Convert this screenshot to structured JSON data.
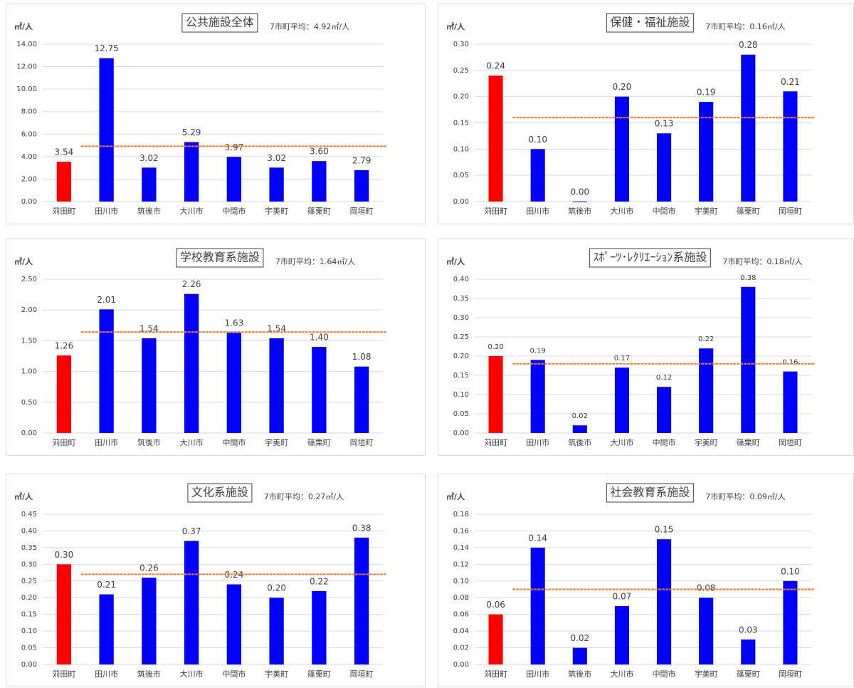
{
  "chart_data": [
    {
      "type": "bar",
      "title": "公共施設全体",
      "annotation": "7市町平均：4.92㎡/人",
      "y_label": "㎡/人",
      "categories": [
        "苅田町",
        "田川市",
        "筑後市",
        "大川市",
        "中間市",
        "宇美町",
        "篠栗町",
        "岡垣町"
      ],
      "values": [
        3.54,
        12.75,
        3.02,
        5.29,
        3.97,
        3.02,
        3.6,
        2.79
      ],
      "value_labels": [
        "3.54",
        "12.75",
        "3.02",
        "5.29",
        "3.97",
        "3.02",
        "3.60",
        "2.79"
      ],
      "colors": [
        "#ff0000",
        "#0000ff",
        "#0000ff",
        "#0000ff",
        "#0000ff",
        "#0000ff",
        "#0000ff",
        "#0000ff"
      ],
      "average": 4.92,
      "average_color": "#ed7d31",
      "ylim": [
        0,
        14
      ],
      "yticks": [
        {
          "value": 0,
          "label": "0.00"
        },
        {
          "value": 2,
          "label": "2.00"
        },
        {
          "value": 4,
          "label": "4.00"
        },
        {
          "value": 6,
          "label": "6.00"
        },
        {
          "value": 8,
          "label": "8.00"
        },
        {
          "value": 10,
          "label": "10.00"
        },
        {
          "value": 12,
          "label": "12.00"
        },
        {
          "value": 14,
          "label": "14.00"
        }
      ],
      "grid": true
    },
    {
      "type": "bar",
      "title": "保健・福祉施設",
      "annotation": "7市町平均：0.16㎡/人",
      "y_label": "㎡/人",
      "categories": [
        "苅田町",
        "田川市",
        "筑後市",
        "大川市",
        "中間市",
        "宇美町",
        "篠栗町",
        "岡垣町"
      ],
      "values": [
        0.24,
        0.1,
        0.0,
        0.2,
        0.13,
        0.19,
        0.28,
        0.21
      ],
      "value_labels": [
        "0.24",
        "0.10",
        "0.00",
        "0.20",
        "0.13",
        "0.19",
        "0.28",
        "0.21"
      ],
      "colors": [
        "#ff0000",
        "#0000ff",
        "#0000ff",
        "#0000ff",
        "#0000ff",
        "#0000ff",
        "#0000ff",
        "#0000ff"
      ],
      "average": 0.16,
      "average_color": "#ed7d31",
      "ylim": [
        0,
        0.3
      ],
      "yticks": [
        {
          "value": 0,
          "label": "0.00"
        },
        0.05,
        {
          "value": 0.1,
          "label": "0.10"
        },
        0.15,
        {
          "value": 0.2,
          "label": "0.20"
        },
        0.25,
        {
          "value": 0.3,
          "label": "0.30"
        }
      ],
      "grid": true
    },
    {
      "type": "bar",
      "title": "学校教育系施設",
      "annotation": "7市町平均：1.64㎡/人",
      "y_label": "㎡/人",
      "categories": [
        "苅田町",
        "田川市",
        "筑後市",
        "大川市",
        "中間市",
        "宇美町",
        "篠栗町",
        "岡垣町"
      ],
      "values": [
        1.26,
        2.01,
        1.54,
        2.26,
        1.63,
        1.54,
        1.4,
        1.08
      ],
      "value_labels": [
        "1.26",
        "2.01",
        "1.54",
        "2.26",
        "1.63",
        "1.54",
        "1.40",
        "1.08"
      ],
      "colors": [
        "#ff0000",
        "#0000ff",
        "#0000ff",
        "#0000ff",
        "#0000ff",
        "#0000ff",
        "#0000ff",
        "#0000ff"
      ],
      "average": 1.64,
      "average_color": "#ed7d31",
      "ylim": [
        0,
        2.5
      ],
      "yticks": [
        {
          "value": 0,
          "label": "0.00"
        },
        {
          "value": 0.5,
          "label": "0.50"
        },
        {
          "value": 1,
          "label": "1.00"
        },
        {
          "value": 1.5,
          "label": "1.50"
        },
        {
          "value": 2,
          "label": "2.00"
        },
        {
          "value": 2.5,
          "label": "2.50"
        }
      ],
      "grid": true
    },
    {
      "type": "bar",
      "title": "ｽﾎﾟｰﾂ･ﾚｸﾘｴｰｼｮﾝ系施設",
      "annotation": "7市町平均：0.18㎡/人",
      "y_label": "㎡/人",
      "categories": [
        "苅田町",
        "田川市",
        "筑後市",
        "大川市",
        "中間市",
        "宇美町",
        "篠栗町",
        "岡垣町"
      ],
      "values": [
        0.2,
        0.19,
        0.02,
        0.17,
        0.12,
        0.22,
        0.38,
        0.16
      ],
      "value_labels": [
        "0.20",
        "0.19",
        "0.02",
        "0.17",
        "0.12",
        "0.22",
        "0.38",
        "0.16"
      ],
      "colors": [
        "#ff0000",
        "#0000ff",
        "#0000ff",
        "#0000ff",
        "#0000ff",
        "#0000ff",
        "#0000ff",
        "#0000ff"
      ],
      "average": 0.18,
      "average_color": "#ed7d31",
      "ylim": [
        0,
        0.4
      ],
      "yticks": [
        {
          "value": 0,
          "label": "0.00"
        },
        0.05,
        {
          "value": 0.1,
          "label": "0.10"
        },
        0.15,
        {
          "value": 0.2,
          "label": "0.20"
        },
        0.25,
        {
          "value": 0.3,
          "label": "0.30"
        },
        0.35,
        {
          "value": 0.4,
          "label": "0.40"
        }
      ],
      "grid": true
    },
    {
      "type": "bar",
      "title": "文化系施設",
      "annotation": "7市町平均：0.27㎡/人",
      "y_label": "㎡/人",
      "categories": [
        "苅田町",
        "田川市",
        "筑後市",
        "大川市",
        "中間市",
        "宇美町",
        "篠栗町",
        "岡垣町"
      ],
      "values": [
        0.3,
        0.21,
        0.26,
        0.37,
        0.24,
        0.2,
        0.22,
        0.38
      ],
      "value_labels": [
        "0.30",
        "0.21",
        "0.26",
        "0.37",
        "0.24",
        "0.20",
        "0.22",
        "0.38"
      ],
      "colors": [
        "#ff0000",
        "#0000ff",
        "#0000ff",
        "#0000ff",
        "#0000ff",
        "#0000ff",
        "#0000ff",
        "#0000ff"
      ],
      "average": 0.27,
      "average_color": "#ed7d31",
      "ylim": [
        0,
        0.45
      ],
      "yticks": [
        {
          "value": 0,
          "label": "0.00"
        },
        0.05,
        {
          "value": 0.1,
          "label": "0.10"
        },
        0.15,
        {
          "value": 0.2,
          "label": "0.20"
        },
        0.25,
        {
          "value": 0.3,
          "label": "0.30"
        },
        0.35,
        {
          "value": 0.4,
          "label": "0.40"
        },
        0.45
      ],
      "grid": true
    },
    {
      "type": "bar",
      "title": "社会教育系施設",
      "annotation": "7市町平均：0.09㎡/人",
      "y_label": "㎡/人",
      "categories": [
        "苅田町",
        "田川市",
        "筑後市",
        "大川市",
        "中間市",
        "宇美町",
        "篠栗町",
        "岡垣町"
      ],
      "values": [
        0.06,
        0.14,
        0.02,
        0.07,
        0.15,
        0.08,
        0.03,
        0.1
      ],
      "value_labels": [
        "0.06",
        "0.14",
        "0.02",
        "0.07",
        "0.15",
        "0.08",
        "0.03",
        "0.10"
      ],
      "colors": [
        "#ff0000",
        "#0000ff",
        "#0000ff",
        "#0000ff",
        "#0000ff",
        "#0000ff",
        "#0000ff",
        "#0000ff"
      ],
      "average": 0.09,
      "average_color": "#ed7d31",
      "ylim": [
        0,
        0.18
      ],
      "yticks": [
        {
          "value": 0,
          "label": "0.00"
        },
        0.02,
        0.04,
        0.06,
        0.08,
        {
          "value": 0.1,
          "label": "0.10"
        },
        0.12,
        0.14,
        0.16,
        0.18
      ],
      "grid": true
    }
  ]
}
